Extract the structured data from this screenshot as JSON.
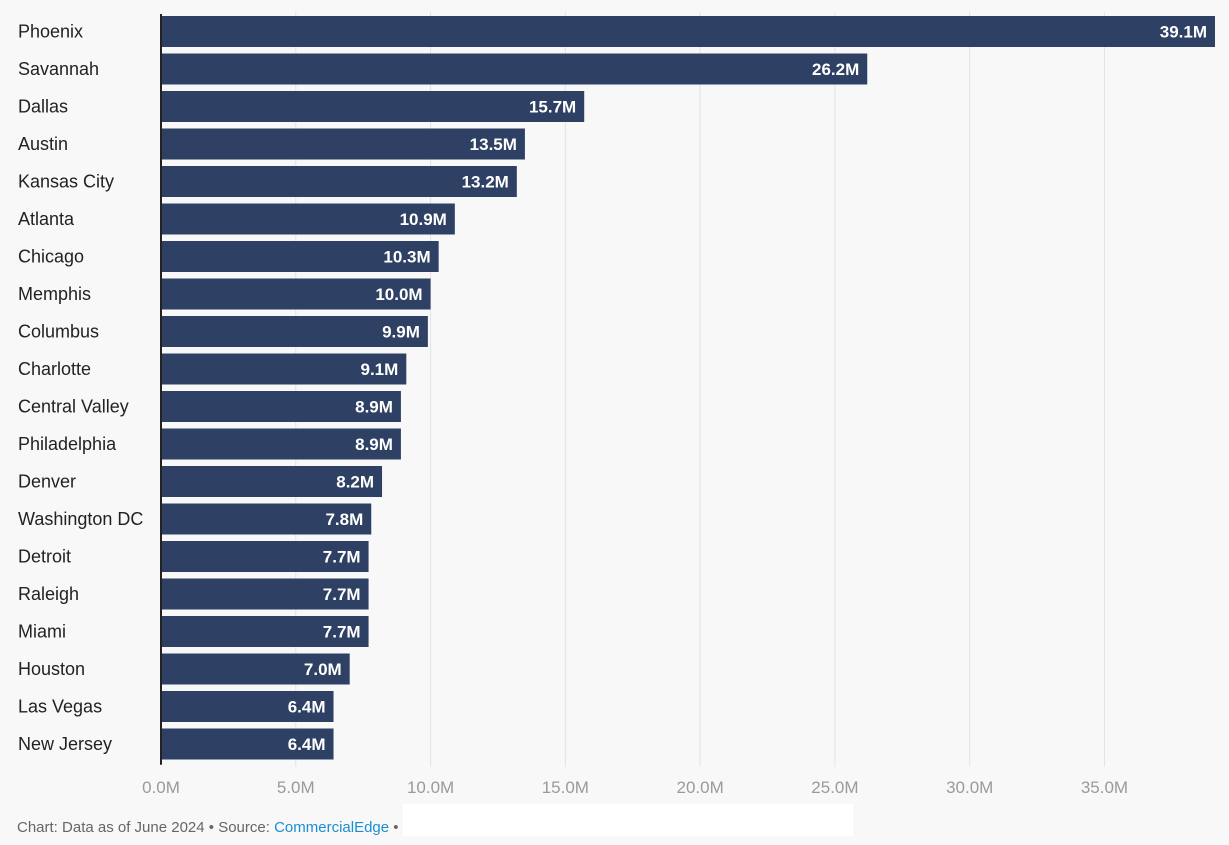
{
  "chart_data": {
    "type": "bar",
    "orientation": "horizontal",
    "categories": [
      "Phoenix",
      "Savannah",
      "Dallas",
      "Austin",
      "Kansas City",
      "Atlanta",
      "Chicago",
      "Memphis",
      "Columbus",
      "Charlotte",
      "Central Valley",
      "Philadelphia",
      "Denver",
      "Washington DC",
      "Detroit",
      "Raleigh",
      "Miami",
      "Houston",
      "Las Vegas",
      "New Jersey"
    ],
    "values": [
      39.1,
      26.2,
      15.7,
      13.5,
      13.2,
      10.9,
      10.3,
      10.0,
      9.9,
      9.1,
      8.9,
      8.9,
      8.2,
      7.8,
      7.7,
      7.7,
      7.7,
      7.0,
      6.4,
      6.4
    ],
    "value_labels": [
      "39.1M",
      "26.2M",
      "15.7M",
      "13.5M",
      "13.2M",
      "10.9M",
      "10.3M",
      "10.0M",
      "9.9M",
      "9.1M",
      "8.9M",
      "8.9M",
      "8.2M",
      "7.8M",
      "7.7M",
      "7.7M",
      "7.7M",
      "7.0M",
      "6.4M",
      "6.4M"
    ],
    "xlim": [
      0,
      39.1
    ],
    "x_ticks": [
      0,
      5,
      10,
      15,
      20,
      25,
      30,
      35
    ],
    "x_tick_labels": [
      "0.0M",
      "5.0M",
      "10.0M",
      "15.0M",
      "20.0M",
      "25.0M",
      "30.0M",
      "35.0M"
    ],
    "grid": true,
    "title": "",
    "xlabel": "",
    "ylabel": "",
    "colors": {
      "bar": "#2e4063",
      "grid": "#e3e3e6",
      "axis": "#222222",
      "background": "#f8f8f9"
    }
  },
  "footer": {
    "prefix": "Chart: Data as of June 2024 • Source: ",
    "source_link": "CommercialEdge",
    "suffix": " •"
  }
}
